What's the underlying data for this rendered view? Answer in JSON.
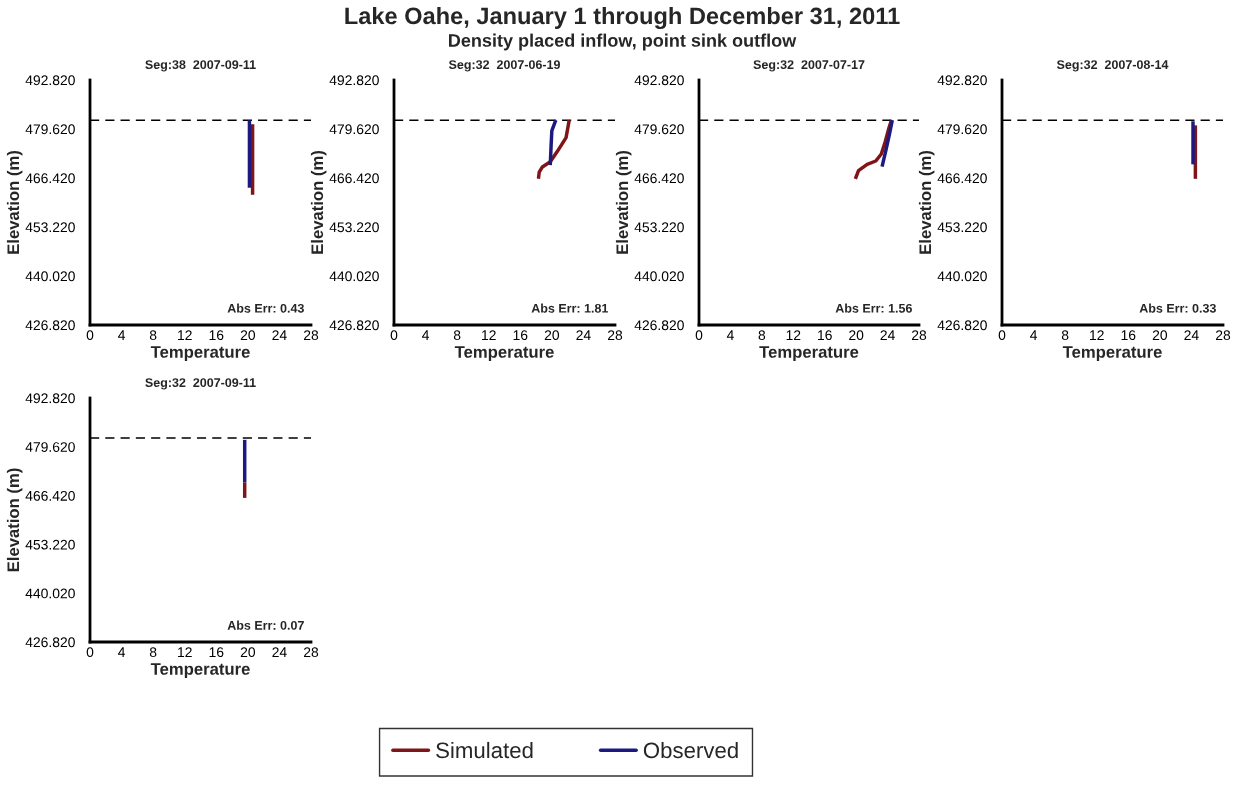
{
  "chart_data": [
    {
      "type": "line",
      "title": "Seg:38  2007-09-11",
      "xlabel": "Temperature",
      "ylabel": "Elevation (m)",
      "annotations": [
        "Lake Oahe, January 1 through December 31, 2011",
        "Density placed inflow, point sink outflow",
        "Abs Err: 0.43"
      ],
      "legend": "bottom",
      "xlim": [
        0,
        28
      ],
      "xticks": [
        0,
        4,
        8,
        12,
        16,
        20,
        24,
        28
      ],
      "ylim": [
        426.82,
        492.82
      ],
      "yticks": [
        {
          "value": 426.82,
          "label": "426.820"
        },
        {
          "value": 440.02,
          "label": "440.020"
        },
        {
          "value": 453.22,
          "label": "453.220"
        },
        {
          "value": 466.42,
          "label": "466.420"
        },
        {
          "value": 479.62,
          "label": "479.620"
        },
        {
          "value": 492.82,
          "label": "492.820"
        }
      ],
      "ref_lines": [
        {
          "axis": "y",
          "value": 482.0,
          "color": "#000000",
          "line_style": "dashed"
        }
      ],
      "series": [
        {
          "name": "Simulated",
          "color": "#7f1518",
          "x": [
            20.6,
            20.6
          ],
          "values": [
            480.9,
            461.9
          ]
        },
        {
          "name": "Observed",
          "color": "#1c1a80",
          "x": [
            20.2,
            20.2
          ],
          "values": [
            482.0,
            463.8
          ]
        }
      ]
    },
    {
      "type": "line",
      "title": "Seg:32  2007-06-19",
      "xlabel": "Temperature",
      "ylabel": "Elevation (m)",
      "annotations": [
        "Abs Err: 1.81"
      ],
      "xlim": [
        0,
        28
      ],
      "xticks": [
        0,
        4,
        8,
        12,
        16,
        20,
        24,
        28
      ],
      "ylim": [
        426.82,
        492.82
      ],
      "yticks": [
        {
          "value": 426.82,
          "label": "426.820"
        },
        {
          "value": 440.02,
          "label": "440.020"
        },
        {
          "value": 453.22,
          "label": "453.220"
        },
        {
          "value": 466.42,
          "label": "466.420"
        },
        {
          "value": 479.62,
          "label": "479.620"
        },
        {
          "value": 492.82,
          "label": "492.820"
        }
      ],
      "ref_lines": [
        {
          "axis": "y",
          "value": 482.0,
          "color": "#000000",
          "line_style": "dashed"
        }
      ],
      "series": [
        {
          "color": "#7f1518",
          "x": [
            22.2,
            21.8,
            20.7,
            19.8,
            18.8,
            18.4,
            18.3
          ],
          "values": [
            482.0,
            477.3,
            473.6,
            470.8,
            469.4,
            468.0,
            466.2
          ]
        },
        {
          "color": "#1c1a80",
          "x": [
            20.5,
            20.0,
            19.9,
            19.8
          ],
          "values": [
            482.0,
            479.2,
            475.0,
            469.9
          ]
        }
      ]
    },
    {
      "type": "line",
      "title": "Seg:32  2007-07-17",
      "xlabel": "Temperature",
      "ylabel": "Elevation (m)",
      "annotations": [
        "Abs Err: 1.56"
      ],
      "xlim": [
        0,
        28
      ],
      "xticks": [
        0,
        4,
        8,
        12,
        16,
        20,
        24,
        28
      ],
      "ylim": [
        426.82,
        492.82
      ],
      "yticks": [
        {
          "value": 426.82,
          "label": "426.820"
        },
        {
          "value": 440.02,
          "label": "440.020"
        },
        {
          "value": 453.22,
          "label": "453.220"
        },
        {
          "value": 466.42,
          "label": "466.420"
        },
        {
          "value": 479.62,
          "label": "479.620"
        },
        {
          "value": 492.82,
          "label": "492.820"
        }
      ],
      "ref_lines": [
        {
          "axis": "y",
          "value": 482.0,
          "color": "#000000",
          "line_style": "dashed"
        }
      ],
      "series": [
        {
          "color": "#7f1518",
          "x": [
            24.5,
            24.2,
            23.7,
            23.2,
            22.5,
            21.4,
            20.3,
            19.9
          ],
          "values": [
            482.0,
            480.1,
            476.2,
            472.9,
            471.0,
            470.1,
            468.4,
            466.2
          ]
        },
        {
          "color": "#1c1a80",
          "x": [
            24.6,
            24.2,
            23.8,
            23.3
          ],
          "values": [
            482.0,
            477.8,
            474.0,
            469.5
          ]
        }
      ]
    },
    {
      "type": "line",
      "title": "Seg:32  2007-08-14",
      "xlabel": "Temperature",
      "ylabel": "Elevation (m)",
      "annotations": [
        "Abs Err: 0.33"
      ],
      "xlim": [
        0,
        28
      ],
      "xticks": [
        0,
        4,
        8,
        12,
        16,
        20,
        24,
        28
      ],
      "ylim": [
        426.82,
        492.82
      ],
      "yticks": [
        {
          "value": 426.82,
          "label": "426.820"
        },
        {
          "value": 440.02,
          "label": "440.020"
        },
        {
          "value": 453.22,
          "label": "453.220"
        },
        {
          "value": 466.42,
          "label": "466.420"
        },
        {
          "value": 479.62,
          "label": "479.620"
        },
        {
          "value": 492.82,
          "label": "492.820"
        }
      ],
      "ref_lines": [
        {
          "axis": "y",
          "value": 482.0,
          "color": "#000000",
          "line_style": "dashed"
        }
      ],
      "series": [
        {
          "color": "#7f1518",
          "x": [
            24.5,
            24.5
          ],
          "values": [
            480.6,
            466.2
          ]
        },
        {
          "color": "#1c1a80",
          "x": [
            24.2,
            24.2
          ],
          "values": [
            481.7,
            470.1
          ]
        }
      ]
    },
    {
      "type": "line",
      "title": "Seg:32  2007-09-11",
      "xlabel": "Temperature",
      "ylabel": "Elevation (m)",
      "annotations": [
        "Abs Err: 0.07"
      ],
      "xlim": [
        0,
        28
      ],
      "xticks": [
        0,
        4,
        8,
        12,
        16,
        20,
        24,
        28
      ],
      "ylim": [
        426.82,
        492.82
      ],
      "yticks": [
        {
          "value": 426.82,
          "label": "426.820"
        },
        {
          "value": 440.02,
          "label": "440.020"
        },
        {
          "value": 453.22,
          "label": "453.220"
        },
        {
          "value": 466.42,
          "label": "466.420"
        },
        {
          "value": 479.62,
          "label": "479.620"
        },
        {
          "value": 492.82,
          "label": "492.820"
        }
      ],
      "ref_lines": [
        {
          "axis": "y",
          "value": 482.0,
          "color": "#000000",
          "line_style": "dashed"
        }
      ],
      "series": [
        {
          "color": "#7f1518",
          "x": [
            19.6,
            19.6
          ],
          "values": [
            470.0,
            465.8
          ]
        },
        {
          "color": "#1c1a80",
          "x": [
            19.6,
            19.6
          ],
          "values": [
            481.5,
            470.0
          ]
        }
      ]
    }
  ]
}
